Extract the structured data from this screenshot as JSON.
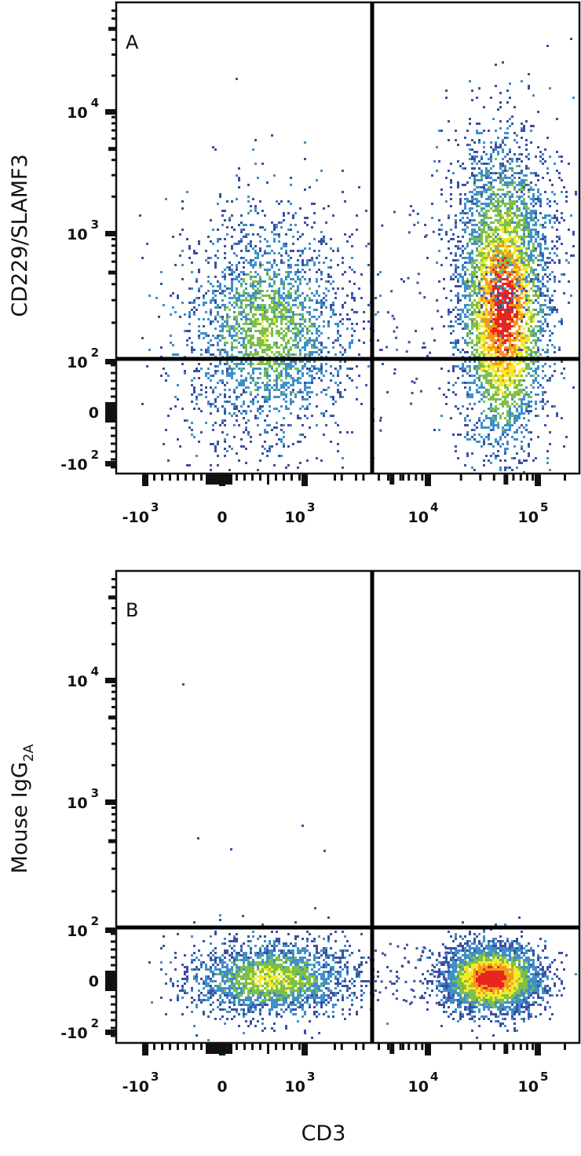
{
  "chart_data": [
    {
      "type": "scatter",
      "subtype": "flow-cytometry-density-plot",
      "panel": "A",
      "panel_label": "A",
      "xlabel": "CD3",
      "ylabel": "CD229/SLAMF3",
      "x_scale": "biexponential",
      "y_scale": "biexponential",
      "x_ticks": [
        "-10^3",
        "0",
        "10^3",
        "10^4",
        "10^5"
      ],
      "y_ticks": [
        "-10^2",
        "0",
        "10^2",
        "10^3",
        "10^4"
      ],
      "quadrant_gates": {
        "x": 3000,
        "y": 110
      },
      "grid": false,
      "legend": null,
      "populations": [
        {
          "name": "CD3- cells",
          "x_center": 300,
          "y_center": 150,
          "x_spread": "~ -200 to 1500",
          "y_spread": "~ -80 to 2000",
          "density": "low-medium (blue/green)"
        },
        {
          "name": "CD3+ cells",
          "x_center": 40000,
          "y_center": 250,
          "x_spread": "~ 20000 to 80000",
          "y_spread": "~ -80 to 4000",
          "density": "high (red/yellow core)"
        }
      ],
      "colormap": [
        "#3b4fa0",
        "#3f8fc8",
        "#7cbf4a",
        "#f2ea2a",
        "#f39a1c",
        "#e8251e"
      ]
    },
    {
      "type": "scatter",
      "subtype": "flow-cytometry-density-plot",
      "panel": "B",
      "panel_label": "B",
      "xlabel": "CD3",
      "ylabel": "Mouse IgG",
      "ylabel_subscript": "2A",
      "x_scale": "biexponential",
      "y_scale": "biexponential",
      "x_ticks": [
        "-10^3",
        "0",
        "10^3",
        "10^4",
        "10^5"
      ],
      "y_ticks": [
        "-10^2",
        "0",
        "10^2",
        "10^3",
        "10^4"
      ],
      "quadrant_gates": {
        "x": 3000,
        "y": 110
      },
      "grid": false,
      "legend": null,
      "populations": [
        {
          "name": "CD3- cells",
          "x_center": 400,
          "y_center": 0,
          "x_spread": "~ -300 to 1500",
          "y_spread": "~ -90 to 100",
          "density": "medium (blue/green)"
        },
        {
          "name": "CD3+ cells",
          "x_center": 40000,
          "y_center": 0,
          "x_spread": "~ 15000 to 90000",
          "y_spread": "~ -90 to 100",
          "density": "high (red core)"
        }
      ],
      "colormap": [
        "#3b4fa0",
        "#3f8fc8",
        "#7cbf4a",
        "#f2ea2a",
        "#f39a1c",
        "#e8251e"
      ]
    }
  ],
  "panels": [
    {
      "letter": "A",
      "ylabel": "CD229/SLAMF3",
      "ylabel_sub": "",
      "yticks": [
        {
          "base": "10",
          "exp": "4"
        },
        {
          "base": "10",
          "exp": "3"
        },
        {
          "base": "10",
          "exp": "2"
        },
        {
          "base": "0",
          "exp": ""
        },
        {
          "base": "-10",
          "exp": "2"
        }
      ]
    },
    {
      "letter": "B",
      "ylabel": "Mouse IgG",
      "ylabel_sub": "2A",
      "yticks": [
        {
          "base": "10",
          "exp": "4"
        },
        {
          "base": "10",
          "exp": "3"
        },
        {
          "base": "10",
          "exp": "2"
        },
        {
          "base": "0",
          "exp": ""
        },
        {
          "base": "-10",
          "exp": "2"
        }
      ]
    }
  ],
  "xticks": [
    {
      "base": "-10",
      "exp": "3"
    },
    {
      "base": "0",
      "exp": ""
    },
    {
      "base": "10",
      "exp": "3"
    },
    {
      "base": "10",
      "exp": "4"
    },
    {
      "base": "10",
      "exp": "5"
    }
  ],
  "xlabel": "CD3",
  "colors": {
    "low": "#3b4fa0",
    "low_mid": "#3f8fc8",
    "mid": "#7cbf4a",
    "mid_high": "#f2ea2a",
    "high": "#f39a1c",
    "max": "#e8251e",
    "gate": "#000000"
  }
}
